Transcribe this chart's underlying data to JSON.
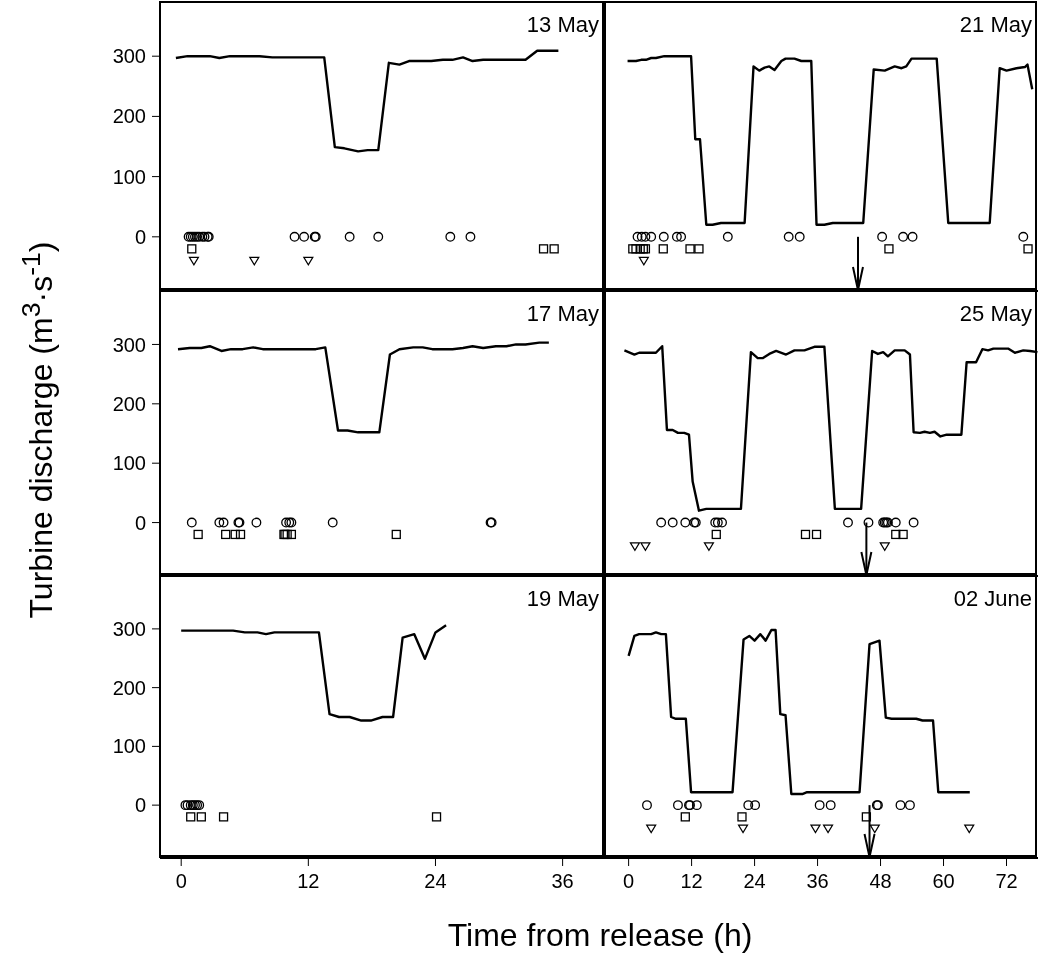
{
  "chart_data": [
    {
      "type": "line",
      "title": "13 May",
      "ylabel": "Turbine discharge (m$^{3}$·s$^{-1}$)",
      "xlim": [
        -2,
        40
      ],
      "xticks": [
        0,
        12,
        24,
        36
      ],
      "ylim": [
        -90,
        390
      ],
      "yticks": [
        0,
        100,
        200,
        300
      ],
      "tick_labels": "y",
      "series": [
        {
          "color": "#000000",
          "marker": "none",
          "x": [
            -0.5,
            0.6,
            2.7,
            3.6,
            4.6,
            7.4,
            8.6,
            13.5,
            14.5,
            15.4,
            16.7,
            17.6,
            18.6,
            19.6,
            20.6,
            21.5,
            23.6,
            24.7,
            25.6,
            26.6,
            27.5,
            28.5,
            32.5,
            33.6,
            35.6
          ],
          "values": [
            297,
            300,
            300,
            297,
            300,
            300,
            298,
            298,
            149,
            147,
            142,
            144,
            144,
            289,
            286,
            292,
            292,
            294,
            294,
            298,
            292,
            294,
            294,
            309,
            309
          ]
        },
        {
          "type": "scatter",
          "color": "#000000",
          "marker": "circle",
          "x": [
            0.7,
            0.9,
            1.1,
            1.3,
            1.5,
            1.7,
            2.0,
            2.2,
            2.5,
            2.6,
            10.7,
            11.6,
            12.6,
            12.7,
            15.9,
            18.6,
            25.4,
            27.3
          ],
          "values": [
            0,
            0,
            0,
            0,
            0,
            0,
            0,
            0,
            0,
            0,
            0,
            0,
            0,
            0,
            0,
            0,
            0,
            0
          ]
        },
        {
          "type": "scatter",
          "color": "#000000",
          "marker": "square",
          "x": [
            1.0,
            34.2,
            35.2
          ],
          "values": [
            -20,
            -20,
            -20
          ]
        },
        {
          "type": "scatter",
          "color": "#000000",
          "marker": "triangle",
          "x": [
            1.2,
            6.9,
            12.0
          ],
          "values": [
            -40,
            -40,
            -40
          ]
        }
      ]
    },
    {
      "type": "line",
      "title": "21 May",
      "xlim": [
        -4.5,
        78
      ],
      "xticks": [
        0,
        12,
        24,
        36,
        48,
        60,
        72
      ],
      "ylim": [
        -90,
        390
      ],
      "yticks": [
        0,
        100,
        200,
        300
      ],
      "tick_labels": false,
      "ref_lines": [
        {
          "axis": "x",
          "value": 43.7
        }
      ],
      "series": [
        {
          "color": "#000000",
          "marker": "none",
          "x": [
            -0.2,
            1.4,
            2.4,
            3.3,
            4.3,
            5.2,
            6.8,
            11.9,
            12.7,
            13.6,
            14.8,
            16.0,
            17.6,
            22.1,
            23.8,
            24.9,
            25.9,
            26.8,
            27.8,
            29.1,
            29.9,
            31.6,
            32.9,
            34.8,
            35.8,
            37.3,
            38.9,
            44.7,
            46.7,
            48.8,
            50.7,
            52.0,
            52.9,
            53.9,
            58.7,
            60.9,
            68.8,
            70.7,
            72.0,
            73.9,
            75.5,
            76.0,
            76.9
          ],
          "values": [
            292,
            292,
            294,
            294,
            297,
            297,
            300,
            300,
            162,
            162,
            20,
            20,
            23,
            23,
            283,
            276,
            281,
            283,
            277,
            292,
            296,
            296,
            292,
            292,
            20,
            20,
            23,
            23,
            278,
            276,
            283,
            280,
            283,
            296,
            296,
            23,
            23,
            280,
            276,
            280,
            282,
            286,
            245
          ]
        },
        {
          "type": "scatter",
          "color": "#000000",
          "marker": "circle",
          "x": [
            1.7,
            2.5,
            3.2,
            4.3,
            6.7,
            9.2,
            10.0,
            18.9,
            30.5,
            32.6,
            48.3,
            52.3,
            54.1,
            75.2
          ],
          "values": [
            0,
            0,
            0,
            0,
            0,
            0,
            0,
            0,
            0,
            0,
            0,
            0,
            0,
            0
          ]
        },
        {
          "type": "scatter",
          "color": "#000000",
          "marker": "square",
          "x": [
            0.8,
            1.4,
            2.2,
            2.8,
            3.2,
            6.6,
            11.7,
            13.4,
            49.6,
            76.1
          ],
          "values": [
            -20,
            -20,
            -20,
            -20,
            -20,
            -20,
            -20,
            -20,
            -20,
            -20
          ]
        },
        {
          "type": "scatter",
          "color": "#000000",
          "marker": "triangle",
          "x": [
            2.9
          ],
          "values": [
            -40
          ]
        }
      ]
    },
    {
      "type": "line",
      "title": "17 May",
      "xlim": [
        -2,
        40
      ],
      "xticks": [
        0,
        12,
        24,
        36
      ],
      "ylim": [
        -90,
        390
      ],
      "yticks": [
        0,
        100,
        200,
        300
      ],
      "tick_labels": "y",
      "series": [
        {
          "color": "#000000",
          "marker": "none",
          "x": [
            -0.3,
            0.8,
            1.9,
            2.7,
            3.8,
            4.7,
            5.8,
            6.8,
            7.7,
            12.7,
            13.6,
            14.8,
            15.7,
            16.7,
            18.7,
            19.7,
            20.6,
            21.9,
            22.8,
            23.7,
            25.6,
            26.6,
            27.5,
            28.5,
            29.7,
            30.7,
            31.6,
            32.5,
            33.8,
            34.7
          ],
          "values": [
            292,
            294,
            294,
            297,
            289,
            292,
            292,
            295,
            292,
            292,
            295,
            155,
            155,
            152,
            152,
            283,
            292,
            295,
            295,
            292,
            292,
            294,
            297,
            294,
            297,
            297,
            300,
            300,
            303,
            303
          ]
        },
        {
          "type": "scatter",
          "color": "#000000",
          "marker": "circle",
          "x": [
            1.0,
            3.6,
            4.0,
            5.4,
            5.5,
            7.1,
            9.9,
            10.2,
            10.4,
            14.3,
            29.2,
            29.3
          ],
          "values": [
            0,
            0,
            0,
            0,
            0,
            0,
            0,
            0,
            0,
            0,
            0,
            0
          ]
        },
        {
          "type": "scatter",
          "color": "#000000",
          "marker": "square",
          "x": [
            1.6,
            4.2,
            5.1,
            5.6,
            9.7,
            9.8,
            10.0,
            10.4,
            20.3
          ],
          "values": [
            -20,
            -20,
            -20,
            -20,
            -20,
            -20,
            -20,
            -20,
            -20
          ]
        }
      ]
    },
    {
      "type": "line",
      "title": "25 May",
      "xlim": [
        -4.5,
        78
      ],
      "xticks": [
        0,
        12,
        24,
        36,
        48,
        60,
        72
      ],
      "ylim": [
        -90,
        390
      ],
      "yticks": [
        0,
        100,
        200,
        300
      ],
      "tick_labels": false,
      "ref_lines": [
        {
          "axis": "x",
          "value": 45.3
        }
      ],
      "series": [
        {
          "color": "#000000",
          "marker": "none",
          "x": [
            -0.8,
            1.1,
            2.0,
            5.2,
            6.4,
            7.3,
            8.4,
            9.4,
            10.6,
            11.5,
            12.2,
            13.4,
            14.8,
            21.4,
            23.3,
            24.6,
            25.6,
            26.8,
            28.1,
            30.0,
            31.6,
            33.5,
            35.4,
            37.3,
            39.3,
            44.3,
            46.4,
            47.5,
            48.5,
            49.4,
            50.7,
            52.6,
            53.6,
            54.3,
            55.5,
            56.4,
            57.4,
            58.3,
            59.4,
            60.6,
            63.4,
            64.4,
            66.2,
            67.4,
            68.5,
            69.5,
            72.3,
            73.6,
            75.2,
            76.5,
            77.9
          ],
          "values": [
            290,
            283,
            286,
            286,
            297,
            156,
            156,
            151,
            151,
            148,
            69,
            20,
            23,
            23,
            287,
            277,
            277,
            284,
            289,
            283,
            290,
            290,
            296,
            296,
            23,
            23,
            289,
            284,
            287,
            280,
            290,
            290,
            283,
            152,
            151,
            153,
            151,
            153,
            145,
            148,
            148,
            270,
            270,
            292,
            290,
            293,
            293,
            286,
            290,
            289,
            287
          ]
        },
        {
          "type": "scatter",
          "color": "#000000",
          "marker": "circle",
          "x": [
            6.2,
            8.4,
            10.8,
            12.5,
            12.8,
            16.5,
            17.0,
            17.8,
            41.8,
            45.7,
            48.5,
            48.8,
            49.1,
            49.4,
            50.9,
            54.3
          ],
          "values": [
            0,
            0,
            0,
            0,
            0,
            0,
            0,
            0,
            0,
            0,
            0,
            0,
            0,
            0,
            0,
            0
          ]
        },
        {
          "type": "scatter",
          "color": "#000000",
          "marker": "square",
          "x": [
            16.7,
            33.7,
            35.8,
            50.9,
            52.3
          ],
          "values": [
            -20,
            -20,
            -20,
            -20,
            -20
          ]
        },
        {
          "type": "scatter",
          "color": "#000000",
          "marker": "triangle",
          "x": [
            1.2,
            3.2,
            15.3,
            48.8
          ],
          "values": [
            -40,
            -40,
            -40,
            -40
          ]
        }
      ]
    },
    {
      "type": "line",
      "title": "19 May",
      "xlabel": "Time from release (h)",
      "xlim": [
        -2,
        40
      ],
      "xticks": [
        0,
        12,
        24,
        36
      ],
      "ylim": [
        -90,
        390
      ],
      "yticks": [
        0,
        100,
        200,
        300
      ],
      "series": [
        {
          "color": "#000000",
          "marker": "none",
          "x": [
            0,
            4.9,
            6.0,
            7.2,
            8.0,
            8.8,
            13.0,
            14.0,
            14.9,
            15.9,
            17.0,
            17.9,
            19.0,
            20.0,
            20.9,
            22.0,
            23.0,
            24.0,
            25.0
          ],
          "values": [
            297,
            297,
            294,
            294,
            291,
            294,
            294,
            155,
            150,
            150,
            144,
            144,
            150,
            150,
            285,
            291,
            249,
            294,
            306
          ]
        },
        {
          "type": "scatter",
          "color": "#000000",
          "marker": "circle",
          "x": [
            0.4,
            0.6,
            0.9,
            1.1,
            1.3,
            1.5,
            1.7
          ],
          "values": [
            0,
            0,
            0,
            0,
            0,
            0,
            0
          ]
        },
        {
          "type": "scatter",
          "color": "#000000",
          "marker": "square",
          "x": [
            0.9,
            1.9,
            4.0,
            24.1
          ],
          "values": [
            -20,
            -20,
            -20,
            -20
          ]
        }
      ]
    },
    {
      "type": "line",
      "title": "02 June",
      "xlim": [
        -4.5,
        78
      ],
      "xticks": [
        0,
        12,
        24,
        36,
        48,
        60,
        72
      ],
      "ylim": [
        -90,
        390
      ],
      "yticks": [
        0,
        100,
        200,
        300
      ],
      "tick_labels": "x",
      "ref_lines": [
        {
          "axis": "x",
          "value": 45.9
        }
      ],
      "series": [
        {
          "color": "#000000",
          "marker": "none",
          "x": [
            0,
            1.1,
            2.0,
            4.3,
            5.2,
            6.2,
            7.1,
            8.1,
            9.0,
            10.9,
            11.9,
            19.8,
            21.9,
            23.0,
            24.0,
            25.1,
            26.1,
            27.2,
            28.0,
            28.9,
            29.9,
            31.0,
            33.2,
            34.0,
            44.0,
            45.9,
            47.8,
            49.0,
            50.1,
            54.8,
            56.0,
            58.0,
            59.0,
            65.0
          ],
          "values": [
            254,
            288,
            291,
            291,
            294,
            291,
            291,
            150,
            147,
            147,
            22,
            22,
            282,
            288,
            280,
            291,
            280,
            298,
            298,
            155,
            153,
            19,
            19,
            22,
            22,
            274,
            280,
            149,
            147,
            147,
            144,
            144,
            22,
            22
          ]
        },
        {
          "type": "scatter",
          "color": "#000000",
          "marker": "circle",
          "x": [
            3.5,
            9.4,
            11.5,
            11.7,
            13.0,
            22.8,
            24.1,
            36.4,
            38.5,
            47.3,
            47.5,
            51.8,
            53.6
          ],
          "values": [
            0,
            0,
            0,
            0,
            0,
            0,
            0,
            0,
            0,
            0,
            0,
            0,
            0
          ]
        },
        {
          "type": "scatter",
          "color": "#000000",
          "marker": "square",
          "x": [
            10.8,
            21.6,
            45.3
          ],
          "values": [
            -20,
            -20,
            -20
          ]
        },
        {
          "type": "scatter",
          "color": "#000000",
          "marker": "triangle",
          "x": [
            4.3,
            21.8,
            35.6,
            38.0,
            46.9,
            64.9
          ],
          "values": [
            -40,
            -40,
            -40,
            -40,
            -40,
            -40
          ]
        }
      ]
    }
  ]
}
